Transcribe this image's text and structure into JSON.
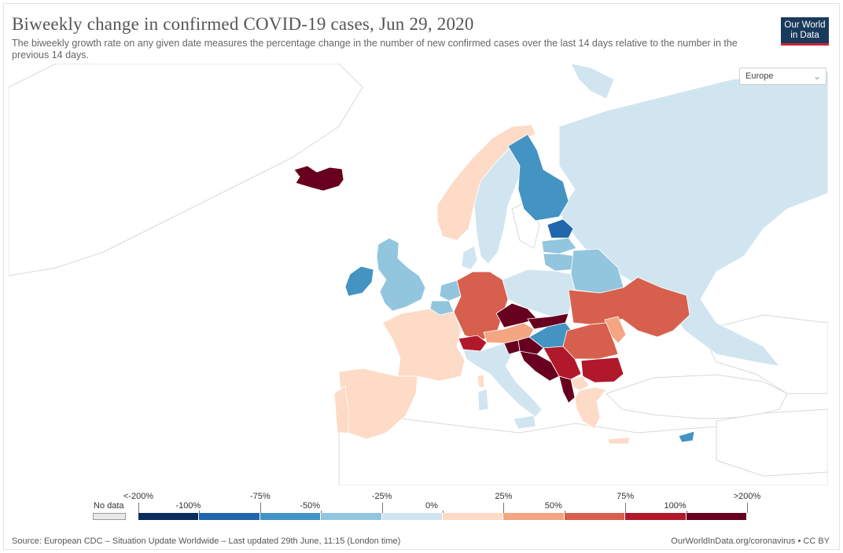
{
  "header": {
    "title": "Biweekly change in confirmed COVID-19 cases, Jun 29, 2020",
    "subtitle": "The biweekly growth rate on any given date measures the percentage change in the number of new confirmed cases over the last 14 days relative to the number in the previous 14 days.",
    "logo_line1": "Our World",
    "logo_line2": "in Data"
  },
  "controls": {
    "region_label": "Europe"
  },
  "legend": {
    "no_data_label": "No data",
    "no_data_color": "#e9e9e9",
    "bins": [
      {
        "from": "<-200%",
        "to": "-100%",
        "color": "#0d2c5e"
      },
      {
        "from": "-100%",
        "to": "-75%",
        "color": "#2166ac"
      },
      {
        "from": "-75%",
        "to": "-50%",
        "color": "#4393c3"
      },
      {
        "from": "-50%",
        "to": "-25%",
        "color": "#92c5de"
      },
      {
        "from": "-25%",
        "to": "0%",
        "color": "#d1e5f0"
      },
      {
        "from": "0%",
        "to": "25%",
        "color": "#fddbc7"
      },
      {
        "from": "25%",
        "to": "50%",
        "color": "#f4a582"
      },
      {
        "from": "50%",
        "to": "75%",
        "color": "#d6604d"
      },
      {
        "from": "75%",
        "to": "100%",
        "color": "#b2182b"
      },
      {
        "from": "100%",
        "to": ">200%",
        "color": "#67001f"
      }
    ],
    "tick_labels": [
      "<-200%",
      "-100%",
      "-75%",
      "-50%",
      "-25%",
      "0%",
      "25%",
      "50%",
      "75%",
      "100%",
      ">200%"
    ]
  },
  "chart_data": {
    "type": "choropleth",
    "region": "Europe",
    "date": "Jun 29, 2020",
    "categories": [
      "<-200%",
      "-100% to -75%",
      "-75% to -50%",
      "-50% to -25%",
      "-25% to 0%",
      "0% to 25%",
      "25% to 50%",
      "50% to 75%",
      "75% to 100%",
      "100% to >200%"
    ],
    "countries": [
      {
        "name": "Iceland",
        "bin": ">200%"
      },
      {
        "name": "Ireland",
        "bin": "-75% to -50%"
      },
      {
        "name": "United Kingdom",
        "bin": "-50% to -25%"
      },
      {
        "name": "France",
        "bin": "0% to 25%"
      },
      {
        "name": "Spain",
        "bin": "0% to 25%"
      },
      {
        "name": "Portugal",
        "bin": "0% to 25%"
      },
      {
        "name": "Belgium",
        "bin": "-50% to -25%"
      },
      {
        "name": "Netherlands",
        "bin": "-50% to -25%"
      },
      {
        "name": "Germany",
        "bin": "50% to 75%"
      },
      {
        "name": "Switzerland",
        "bin": "75% to 100%"
      },
      {
        "name": "Austria",
        "bin": "25% to 50%"
      },
      {
        "name": "Italy",
        "bin": "-25% to 0%"
      },
      {
        "name": "Czechia",
        "bin": ">200%"
      },
      {
        "name": "Slovakia",
        "bin": ">200%"
      },
      {
        "name": "Hungary",
        "bin": "-75% to -50%"
      },
      {
        "name": "Poland",
        "bin": "-25% to 0%"
      },
      {
        "name": "Denmark",
        "bin": "-25% to 0%"
      },
      {
        "name": "Norway",
        "bin": "0% to 25%"
      },
      {
        "name": "Sweden",
        "bin": "-25% to 0%"
      },
      {
        "name": "Finland",
        "bin": "-75% to -50%"
      },
      {
        "name": "Estonia",
        "bin": "-100% to -75%"
      },
      {
        "name": "Latvia",
        "bin": "-50% to -25%"
      },
      {
        "name": "Lithuania",
        "bin": "-50% to -25%"
      },
      {
        "name": "Belarus",
        "bin": "-50% to -25%"
      },
      {
        "name": "Ukraine",
        "bin": "50% to 75%"
      },
      {
        "name": "Moldova",
        "bin": "25% to 50%"
      },
      {
        "name": "Romania",
        "bin": "50% to 75%"
      },
      {
        "name": "Croatia",
        "bin": ">200%"
      },
      {
        "name": "Slovenia",
        "bin": ">200%"
      },
      {
        "name": "Bosnia and Herzegovina",
        "bin": ">200%"
      },
      {
        "name": "Serbia",
        "bin": "75% to 100%"
      },
      {
        "name": "Montenegro",
        "bin": ">200%"
      },
      {
        "name": "Bulgaria",
        "bin": "75% to 100%"
      },
      {
        "name": "North Macedonia",
        "bin": "0% to 25%"
      },
      {
        "name": "Greece",
        "bin": "0% to 25%"
      },
      {
        "name": "Cyprus",
        "bin": "-75% to -50%"
      },
      {
        "name": "Russia",
        "bin": "-25% to 0%"
      },
      {
        "name": "Svalbard",
        "bin": "-25% to 0%"
      }
    ]
  },
  "footer": {
    "source": "Source: European CDC – Situation Update Worldwide – Last updated 29th June, 11:15 (London time)",
    "credit": "OurWorldInData.org/coronavirus • CC BY"
  }
}
